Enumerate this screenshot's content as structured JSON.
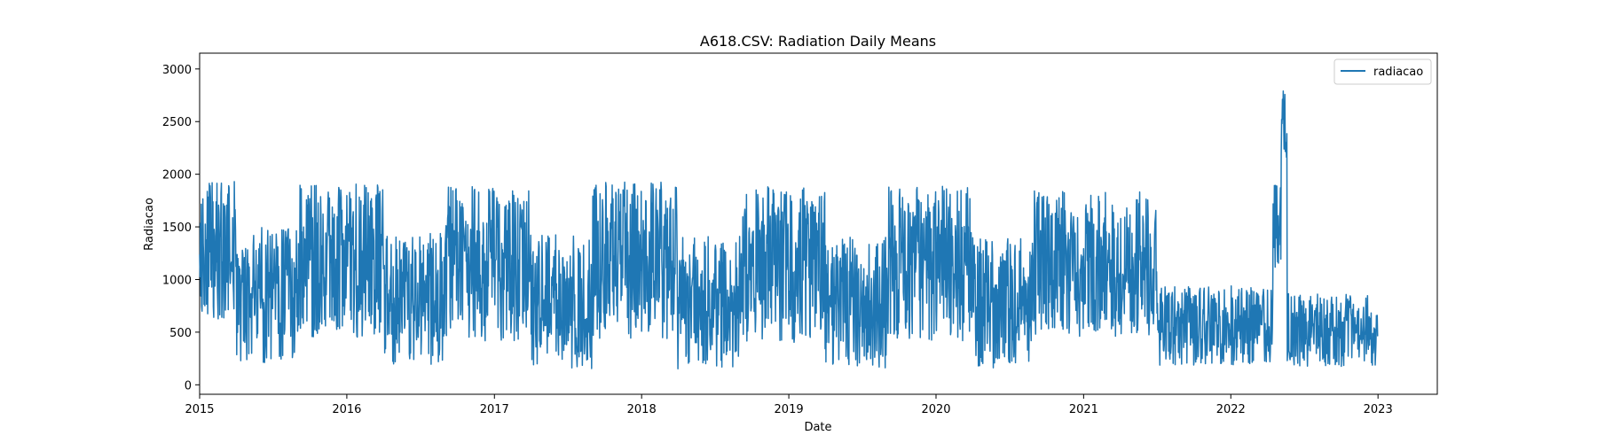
{
  "chart_data": {
    "type": "line",
    "title": "A618.CSV: Radiation Daily Means",
    "xlabel": "Date",
    "ylabel": "Radiacao",
    "x_ticks": [
      "2015",
      "2016",
      "2017",
      "2018",
      "2019",
      "2020",
      "2021",
      "2022",
      "2023"
    ],
    "y_ticks": [
      "0",
      "500",
      "1000",
      "1500",
      "2000",
      "2500",
      "3000"
    ],
    "xlim": [
      "2015-01-01",
      "2023-05-28"
    ],
    "ylim": [
      -90,
      3150
    ],
    "grid": false,
    "legend": "top-right",
    "series": [
      {
        "name": "radiacao",
        "color": "#1f77b4",
        "segments": [
          {
            "start": "2015-01-01",
            "end": "2015-03-31",
            "min": 450,
            "max": 1930,
            "amp": 620,
            "mean": 1300
          },
          {
            "start": "2015-04-01",
            "end": "2015-08-31",
            "min": 150,
            "max": 1640,
            "amp": 560,
            "mean": 850
          },
          {
            "start": "2015-09-01",
            "end": "2016-03-31",
            "min": 220,
            "max": 1940,
            "amp": 640,
            "mean": 1180
          },
          {
            "start": "2016-04-01",
            "end": "2016-08-31",
            "min": 110,
            "max": 1600,
            "amp": 560,
            "mean": 800
          },
          {
            "start": "2016-09-01",
            "end": "2017-03-31",
            "min": 100,
            "max": 1930,
            "amp": 640,
            "mean": 1150
          },
          {
            "start": "2017-04-01",
            "end": "2017-08-31",
            "min": 150,
            "max": 1560,
            "amp": 560,
            "mean": 780
          },
          {
            "start": "2017-09-01",
            "end": "2018-03-31",
            "min": 130,
            "max": 1980,
            "amp": 650,
            "mean": 1180
          },
          {
            "start": "2018-04-01",
            "end": "2018-08-31",
            "min": 130,
            "max": 1500,
            "amp": 550,
            "mean": 780
          },
          {
            "start": "2018-09-01",
            "end": "2019-03-31",
            "min": 100,
            "max": 1960,
            "amp": 650,
            "mean": 1150
          },
          {
            "start": "2019-04-01",
            "end": "2019-08-31",
            "min": 100,
            "max": 1450,
            "amp": 540,
            "mean": 780
          },
          {
            "start": "2019-09-01",
            "end": "2020-03-31",
            "min": 100,
            "max": 2060,
            "amp": 650,
            "mean": 1150
          },
          {
            "start": "2020-04-01",
            "end": "2020-08-31",
            "min": 110,
            "max": 1480,
            "amp": 540,
            "mean": 780
          },
          {
            "start": "2020-09-01",
            "end": "2021-07-01",
            "min": 200,
            "max": 1950,
            "amp": 600,
            "mean": 1150
          },
          {
            "start": "2021-07-02",
            "end": "2022-04-15",
            "min": 80,
            "max": 1080,
            "amp": 330,
            "mean": 560
          },
          {
            "start": "2022-04-16",
            "end": "2022-05-05",
            "min": 300,
            "max": 2200,
            "amp": 350,
            "mean": 1500
          },
          {
            "start": "2022-05-06",
            "end": "2022-05-20",
            "min": 1940,
            "max": 3010,
            "amp": 300,
            "mean": 2450
          },
          {
            "start": "2022-05-21",
            "end": "2022-12-31",
            "min": 60,
            "max": 1020,
            "amp": 300,
            "mean": 520
          }
        ]
      }
    ]
  }
}
